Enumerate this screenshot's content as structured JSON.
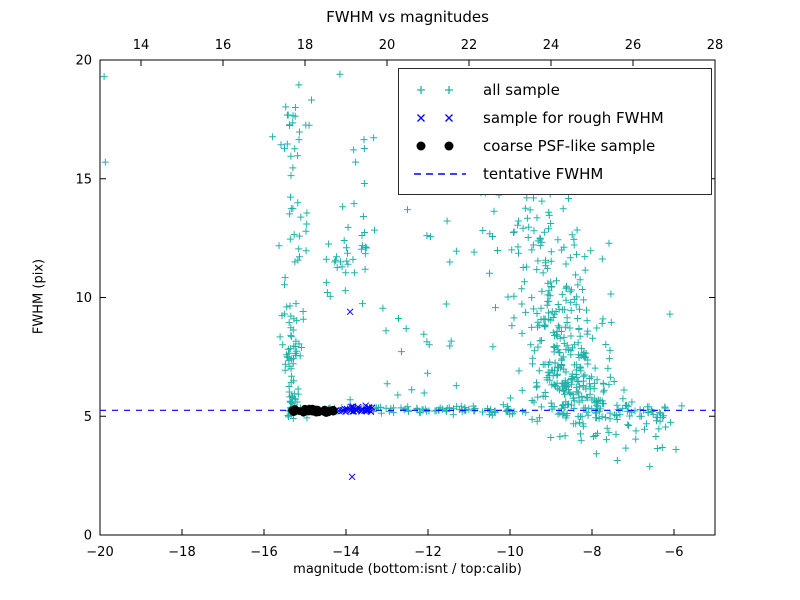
{
  "figure": {
    "title": "FWHM vs magnitudes",
    "xlabel": "magnitude (bottom:isnt / top:calib)",
    "ylabel": "FWHM (pix)"
  },
  "legend": {
    "items": [
      {
        "label": "all sample",
        "marker": "plus",
        "color": "#20b2aa"
      },
      {
        "label": "sample for rough FWHM",
        "marker": "x",
        "color": "#0000ff"
      },
      {
        "label": "coarse PSF-like sample",
        "marker": "dot",
        "color": "#000000"
      },
      {
        "label": "tentative FWHM",
        "marker": "dashed-line",
        "color": "#0000ff"
      }
    ]
  },
  "chart_data": {
    "type": "scatter",
    "title": "FWHM vs magnitudes",
    "xlabel": "magnitude (bottom:isnt / top:calib)",
    "ylabel": "FWHM (pix)",
    "xlim": [
      -20,
      -5
    ],
    "ylim": [
      0,
      20
    ],
    "grid": false,
    "legend_position": "upper right",
    "x_bottom_ticks": {
      "values": [
        -20,
        -18,
        -16,
        -14,
        -12,
        -10,
        -8,
        -6
      ],
      "labels": [
        "−20",
        "−18",
        "−16",
        "−14",
        "−12",
        "−10",
        "−8",
        "−6"
      ]
    },
    "x_top_axis": {
      "lim": [
        13,
        28
      ],
      "tick_values": [
        14,
        16,
        18,
        20,
        22,
        24,
        26,
        28
      ],
      "tick_labels": [
        "14",
        "16",
        "18",
        "20",
        "22",
        "24",
        "26",
        "28"
      ]
    },
    "y_ticks": {
      "values": [
        0,
        5,
        10,
        15,
        20
      ],
      "labels": [
        "0",
        "5",
        "10",
        "15",
        "20"
      ]
    },
    "tentative_fwhm_y": 5.25,
    "series": [
      {
        "name": "all sample",
        "marker": "plus",
        "color": "#20b2aa",
        "clusters": [
          {
            "cx": -15.35,
            "cy": 7.2,
            "sx": 0.13,
            "sy": 1.3,
            "n": 45
          },
          {
            "cx": -15.3,
            "cy": 12.0,
            "sx": 0.16,
            "sy": 1.8,
            "n": 25
          },
          {
            "cx": -15.28,
            "cy": 17.3,
            "sx": 0.22,
            "sy": 1.3,
            "n": 22
          },
          {
            "cx": -15.3,
            "cy": 5.6,
            "sx": 0.12,
            "sy": 0.35,
            "n": 25
          },
          {
            "cx": -14.6,
            "cy": 9.5,
            "sx": 0.4,
            "sy": 1.5,
            "n": 8
          },
          {
            "cx": -13.9,
            "cy": 12.3,
            "sx": 0.3,
            "sy": 1.2,
            "n": 28
          },
          {
            "cx": -13.6,
            "cy": 15.0,
            "sx": 0.3,
            "sy": 0.8,
            "n": 6
          },
          {
            "cx": -11.9,
            "cy": 10.5,
            "sx": 0.55,
            "sy": 2.2,
            "n": 16
          },
          {
            "cx": -12.6,
            "cy": 6.8,
            "sx": 0.5,
            "sy": 1.0,
            "n": 10
          },
          {
            "cx": -10.4,
            "cy": 13.5,
            "sx": 0.35,
            "sy": 2.2,
            "n": 12
          },
          {
            "cx": -8.55,
            "cy": 6.3,
            "sx": 0.5,
            "sy": 0.9,
            "n": 190
          },
          {
            "cx": -8.8,
            "cy": 8.8,
            "sx": 0.55,
            "sy": 1.3,
            "n": 110
          },
          {
            "cx": -9.15,
            "cy": 11.8,
            "sx": 0.55,
            "sy": 1.7,
            "n": 65
          },
          {
            "cx": -9.2,
            "cy": 15.0,
            "sx": 0.5,
            "sy": 1.3,
            "n": 22
          },
          {
            "cx": -9.4,
            "cy": 17.8,
            "sx": 0.4,
            "sy": 1.0,
            "n": 8
          },
          {
            "cx": -13.0,
            "cy": 5.3,
            "sx": 1.5,
            "sy": 0.08,
            "n": 50,
            "dist": "band"
          },
          {
            "cx": -10.65,
            "cy": 5.25,
            "sx": 0.85,
            "sy": 0.1,
            "n": 35,
            "dist": "band"
          },
          {
            "cx": -7.1,
            "cy": 5.15,
            "sx": 0.9,
            "sy": 0.22,
            "n": 45,
            "dist": "band"
          },
          {
            "cx": -7.6,
            "cy": 4.35,
            "sx": 0.7,
            "sy": 0.5,
            "n": 22
          },
          {
            "cx": -6.35,
            "cy": 4.8,
            "sx": 0.35,
            "sy": 0.9,
            "n": 10
          }
        ],
        "points": [
          [
            -19.9,
            19.3
          ],
          [
            -19.87,
            15.7
          ],
          [
            -14.15,
            19.4
          ],
          [
            -13.55,
            14.8
          ],
          [
            -5.95,
            3.6
          ],
          [
            -6.1,
            9.3
          ]
        ]
      },
      {
        "name": "sample for rough FWHM",
        "marker": "x",
        "color": "#0000ff",
        "clusters": [
          {
            "cx": -13.8,
            "cy": 5.3,
            "sx": 0.45,
            "sy": 0.07,
            "n": 30,
            "dist": "band"
          }
        ],
        "points": [
          [
            -13.9,
            9.4
          ],
          [
            -13.85,
            2.45
          ]
        ]
      },
      {
        "name": "coarse PSF-like sample",
        "marker": "dot",
        "color": "#000000",
        "clusters": [
          {
            "cx": -14.8,
            "cy": 5.22,
            "sx": 0.55,
            "sy": 0.05,
            "n": 30,
            "dist": "band"
          }
        ],
        "points": []
      },
      {
        "name": "tentative FWHM",
        "marker": "dashed-line",
        "color": "#0000ff",
        "y": 5.25
      }
    ]
  }
}
